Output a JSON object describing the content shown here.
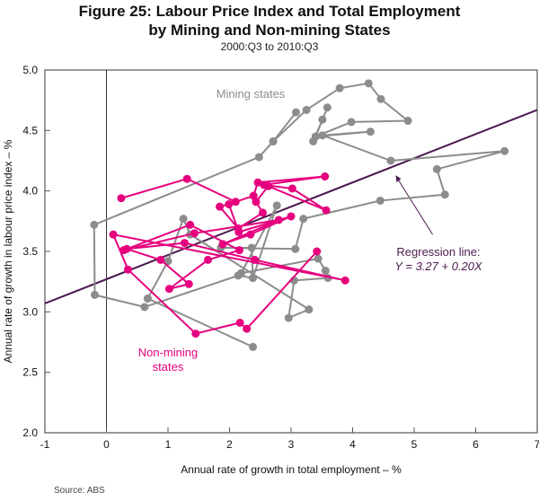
{
  "chart_data": {
    "type": "scatter",
    "title": "Figure 25: Labour Price Index and Total Employment",
    "title_line2": "by Mining and Non-mining States",
    "subtitle": "2000:Q3 to 2010:Q3",
    "xlabel": "Annual rate of growth in total employment – %",
    "ylabel": "Annual rate of growth in labour price index – %",
    "xlim": [
      -1,
      7
    ],
    "ylim": [
      2.0,
      5.0
    ],
    "xticks": [
      "-1",
      "0",
      "1",
      "2",
      "3",
      "4",
      "5",
      "6",
      "7"
    ],
    "yticks": [
      "2.0",
      "2.5",
      "3.0",
      "3.5",
      "4.0",
      "4.5",
      "5.0"
    ],
    "grid": false,
    "series": [
      {
        "name": "Mining states",
        "color": "#8c8c8c",
        "connected": true,
        "points": [
          [
            2.38,
            2.71
          ],
          [
            0.67,
            3.11
          ],
          [
            1.0,
            3.42
          ],
          [
            1.25,
            3.77
          ],
          [
            1.36,
            3.64
          ],
          [
            3.29,
            3.02
          ],
          [
            2.96,
            2.95
          ],
          [
            3.05,
            3.26
          ],
          [
            3.6,
            3.28
          ],
          [
            3.56,
            3.34
          ],
          [
            3.44,
            3.44
          ],
          [
            2.19,
            3.32
          ],
          [
            2.77,
            3.88
          ],
          [
            2.38,
            3.28
          ],
          [
            2.36,
            3.53
          ],
          [
            1.86,
            3.53
          ],
          [
            3.07,
            3.52
          ],
          [
            3.2,
            3.77
          ],
          [
            4.45,
            3.92
          ],
          [
            5.5,
            3.97
          ],
          [
            5.37,
            4.18
          ],
          [
            6.47,
            4.33
          ],
          [
            4.62,
            4.25
          ],
          [
            3.51,
            4.46
          ],
          [
            4.29,
            4.49
          ],
          [
            3.4,
            4.45
          ],
          [
            3.36,
            4.41
          ],
          [
            3.51,
            4.59
          ],
          [
            3.59,
            4.69
          ],
          [
            3.4,
            4.45
          ],
          [
            3.98,
            4.57
          ],
          [
            4.9,
            4.58
          ],
          [
            4.46,
            4.76
          ],
          [
            4.26,
            4.89
          ],
          [
            3.79,
            4.85
          ],
          [
            3.25,
            4.67
          ],
          [
            2.71,
            4.41
          ],
          [
            3.08,
            4.65
          ],
          [
            2.71,
            4.41
          ],
          [
            2.48,
            4.28
          ],
          [
            -0.2,
            3.72
          ],
          [
            -0.19,
            3.14
          ],
          [
            0.62,
            3.04
          ],
          [
            2.14,
            3.3
          ],
          [
            2.38,
            3.28
          ]
        ]
      },
      {
        "name": "Non-mining states",
        "label_lines": [
          "Non-mining",
          "states"
        ],
        "color": "#e6007e",
        "connected": true,
        "points": [
          [
            0.24,
            3.94
          ],
          [
            1.31,
            4.1
          ],
          [
            2.1,
            3.91
          ],
          [
            2.39,
            3.96
          ],
          [
            2.46,
            4.07
          ],
          [
            3.55,
            4.12
          ],
          [
            2.56,
            4.05
          ],
          [
            3.02,
            4.02
          ],
          [
            3.57,
            3.84
          ],
          [
            2.63,
            4.04
          ],
          [
            2.43,
            3.91
          ],
          [
            2.54,
            3.82
          ],
          [
            2.14,
            3.69
          ],
          [
            1.84,
            3.87
          ],
          [
            1.99,
            3.89
          ],
          [
            2.15,
            3.66
          ],
          [
            3.0,
            3.79
          ],
          [
            2.34,
            3.64
          ],
          [
            1.89,
            3.56
          ],
          [
            2.8,
            3.76
          ],
          [
            1.43,
            3.65
          ],
          [
            0.28,
            3.51
          ],
          [
            1.36,
            3.72
          ],
          [
            2.16,
            3.51
          ],
          [
            1.65,
            3.43
          ],
          [
            1.02,
            3.19
          ],
          [
            1.34,
            3.23
          ],
          [
            0.88,
            3.43
          ],
          [
            0.33,
            3.52
          ],
          [
            1.27,
            3.57
          ],
          [
            2.41,
            3.43
          ],
          [
            3.88,
            3.26
          ],
          [
            0.11,
            3.64
          ],
          [
            0.35,
            3.35
          ],
          [
            1.45,
            2.82
          ],
          [
            2.17,
            2.91
          ],
          [
            2.28,
            2.86
          ],
          [
            3.42,
            3.5
          ]
        ]
      }
    ],
    "regression": {
      "intercept": 3.27,
      "slope": 0.2,
      "color": "#4b1a4f",
      "label_lines": [
        "Regression line:",
        "Y = 3.27 + 0.20X"
      ]
    },
    "annotations": {
      "mining_label": "Mining states"
    }
  },
  "source": "Source: ABS"
}
